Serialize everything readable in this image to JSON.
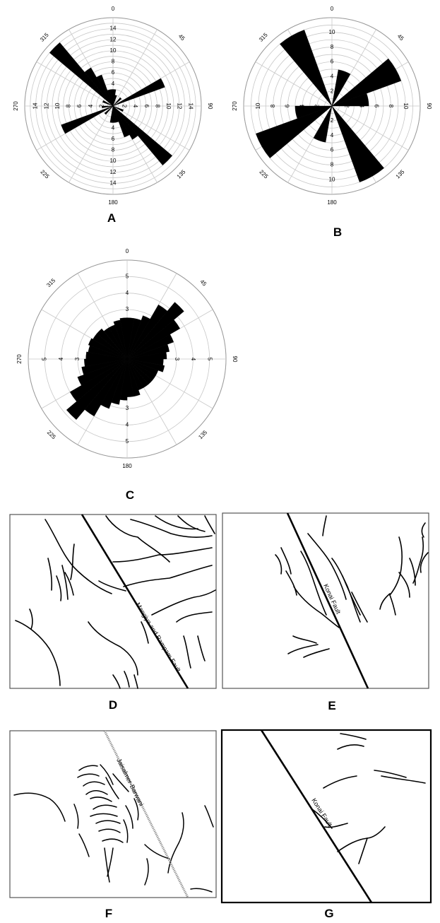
{
  "colors": {
    "petal": "#000000",
    "grid": "#c8c8c8",
    "line": "#000000",
    "frame": "#555555"
  },
  "chart_data": [
    {
      "type": "rose",
      "panel_label": "A",
      "direction_labels": [
        "0",
        "45",
        "90",
        "135",
        "180",
        "225",
        "270",
        "315"
      ],
      "radial_ticks": [
        "2",
        "4",
        "6",
        "8",
        "10",
        "12",
        "14"
      ],
      "rmax": 16,
      "bin_width_deg": 10,
      "bins": [
        {
          "dir": 315,
          "value": 15
        },
        {
          "dir": 325,
          "value": 8
        },
        {
          "dir": 335,
          "value": 6
        },
        {
          "dir": 345,
          "value": 3
        },
        {
          "dir": 355,
          "value": 3
        },
        {
          "dir": 5,
          "value": 3
        },
        {
          "dir": 15,
          "value": 2
        },
        {
          "dir": 45,
          "value": 2
        },
        {
          "dir": 65,
          "value": 10
        },
        {
          "dir": 115,
          "value": 2
        },
        {
          "dir": 135,
          "value": 14
        },
        {
          "dir": 145,
          "value": 7
        },
        {
          "dir": 155,
          "value": 6
        },
        {
          "dir": 165,
          "value": 3
        },
        {
          "dir": 175,
          "value": 3
        },
        {
          "dir": 185,
          "value": 3
        },
        {
          "dir": 225,
          "value": 2
        },
        {
          "dir": 245,
          "value": 10
        },
        {
          "dir": 265,
          "value": 2
        },
        {
          "dir": 295,
          "value": 2
        }
      ]
    },
    {
      "type": "rose",
      "panel_label": "B",
      "direction_labels": [
        "0",
        "45",
        "90",
        "135",
        "180",
        "225",
        "270",
        "315"
      ],
      "radial_ticks": [
        "2",
        "4",
        "6",
        "8",
        "10"
      ],
      "rmax": 12,
      "bin_width_deg": 20,
      "bins": [
        {
          "dir": 330,
          "value": 11
        },
        {
          "dir": 20,
          "value": 5
        },
        {
          "dir": 60,
          "value": 10
        },
        {
          "dir": 80,
          "value": 5
        },
        {
          "dir": 150,
          "value": 11
        },
        {
          "dir": 200,
          "value": 5
        },
        {
          "dir": 240,
          "value": 11
        },
        {
          "dir": 260,
          "value": 5
        }
      ]
    },
    {
      "type": "rose",
      "panel_label": "C",
      "direction_labels": [
        "0",
        "45",
        "90",
        "135",
        "180",
        "225",
        "270",
        "315"
      ],
      "radial_ticks": [
        "3",
        "4",
        "5"
      ],
      "rmax": 6,
      "bin_width_deg": 10,
      "bins": [
        {
          "dir": 5,
          "value": 2.5
        },
        {
          "dir": 15,
          "value": 2.5
        },
        {
          "dir": 25,
          "value": 2.8
        },
        {
          "dir": 35,
          "value": 3.8
        },
        {
          "dir": 45,
          "value": 4.5
        },
        {
          "dir": 55,
          "value": 3.7
        },
        {
          "dir": 65,
          "value": 3
        },
        {
          "dir": 75,
          "value": 2.6
        },
        {
          "dir": 85,
          "value": 2.4
        },
        {
          "dir": 95,
          "value": 2.2
        },
        {
          "dir": 105,
          "value": 2.3
        },
        {
          "dir": 115,
          "value": 2
        },
        {
          "dir": 125,
          "value": 2
        },
        {
          "dir": 135,
          "value": 2
        },
        {
          "dir": 145,
          "value": 2
        },
        {
          "dir": 155,
          "value": 2
        },
        {
          "dir": 165,
          "value": 2.3
        },
        {
          "dir": 175,
          "value": 2.3
        },
        {
          "dir": 185,
          "value": 2.5
        },
        {
          "dir": 195,
          "value": 2.8
        },
        {
          "dir": 205,
          "value": 3.2
        },
        {
          "dir": 215,
          "value": 4
        },
        {
          "dir": 225,
          "value": 4.8
        },
        {
          "dir": 235,
          "value": 4
        },
        {
          "dir": 245,
          "value": 3.2
        },
        {
          "dir": 255,
          "value": 2.8
        },
        {
          "dir": 265,
          "value": 2.6
        },
        {
          "dir": 275,
          "value": 2.5
        },
        {
          "dir": 285,
          "value": 2.4
        },
        {
          "dir": 295,
          "value": 2.5
        },
        {
          "dir": 305,
          "value": 2.4
        },
        {
          "dir": 315,
          "value": 2.4
        },
        {
          "dir": 325,
          "value": 2.2
        },
        {
          "dir": 335,
          "value": 2.2
        },
        {
          "dir": 345,
          "value": 2.4
        },
        {
          "dir": 355,
          "value": 2.5
        }
      ]
    }
  ],
  "maps": [
    {
      "panel_label": "D",
      "fault_label": "Mangiya and Rampam Fault"
    },
    {
      "panel_label": "E",
      "fault_label": "Konai Fault"
    },
    {
      "panel_label": "F",
      "fault_label": "Jaisalmer-Barwani"
    },
    {
      "panel_label": "G",
      "fault_label": "Konai Fault"
    }
  ]
}
